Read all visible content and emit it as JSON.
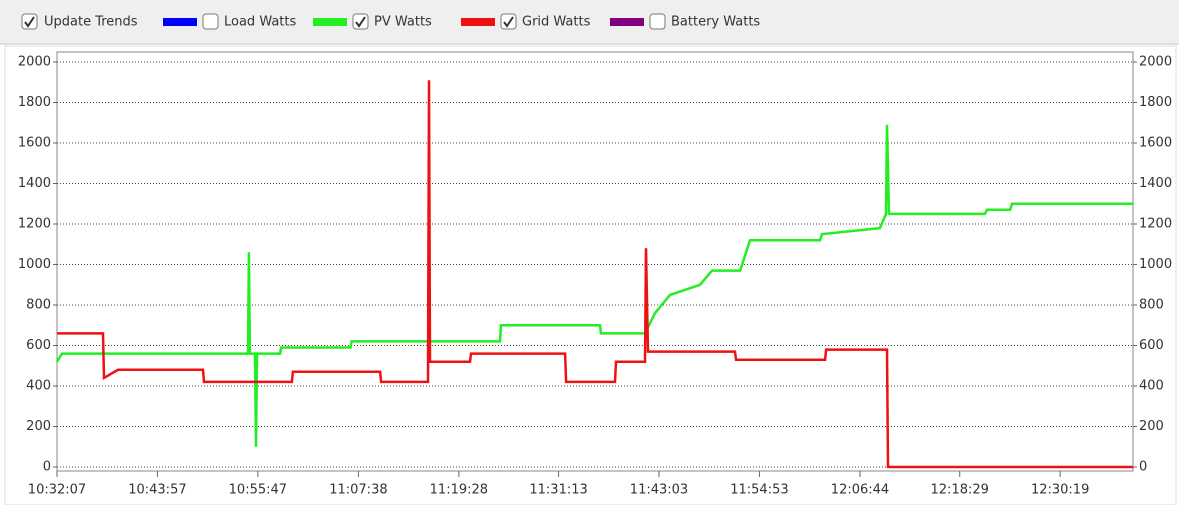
{
  "toolbar": {
    "update_trends": {
      "label": "Update Trends",
      "checked": true
    }
  },
  "chart_data": {
    "type": "line",
    "legend": [
      {
        "name": "Load Watts",
        "color": "#0000ff",
        "checked": false
      },
      {
        "name": "PV Watts",
        "color": "#22ee22",
        "checked": true
      },
      {
        "name": "Grid Watts",
        "color": "#ee1111",
        "checked": true
      },
      {
        "name": "Battery Watts",
        "color": "#800080",
        "checked": false
      }
    ],
    "xlim": [
      37927,
      45534
    ],
    "xticks": [
      {
        "value": 37927,
        "label": "10:32:07"
      },
      {
        "value": 38637,
        "label": "10:43:57"
      },
      {
        "value": 39347,
        "label": "10:55:47"
      },
      {
        "value": 40058,
        "label": "11:07:38"
      },
      {
        "value": 40768,
        "label": "11:19:28"
      },
      {
        "value": 41473,
        "label": "11:31:13"
      },
      {
        "value": 42183,
        "label": "11:43:03"
      },
      {
        "value": 42893,
        "label": "11:54:53"
      },
      {
        "value": 43604,
        "label": "12:06:44"
      },
      {
        "value": 44309,
        "label": "12:18:29"
      },
      {
        "value": 45019,
        "label": "12:30:19"
      }
    ],
    "ylim": [
      0,
      2000
    ],
    "yticks": [
      0,
      200,
      400,
      600,
      800,
      1000,
      1200,
      1400,
      1600,
      1800,
      2000
    ],
    "y2lim": [
      0,
      2000
    ],
    "y2ticks": [
      0,
      200,
      400,
      600,
      800,
      1000,
      1200,
      1400,
      1600,
      1800,
      2000
    ],
    "grid": true,
    "series": [
      {
        "color": "#22ee22",
        "x": [
          37927,
          37962,
          39277,
          39284,
          39291,
          39327,
          39334,
          39341,
          39504,
          39511,
          40003,
          40010,
          41059,
          41066,
          41766,
          41773,
          42084,
          42155,
          42261,
          42473,
          42558,
          42756,
          42826,
          43321,
          43335,
          43745,
          43788,
          43795,
          43809,
          44488,
          44502,
          44665,
          44679,
          45534
        ],
        "values": [
          520,
          560,
          560,
          1060,
          560,
          560,
          100,
          560,
          560,
          590,
          590,
          620,
          620,
          700,
          700,
          660,
          660,
          760,
          850,
          900,
          970,
          970,
          1120,
          1120,
          1150,
          1180,
          1250,
          1690,
          1250,
          1250,
          1270,
          1270,
          1300,
          1300
        ]
      },
      {
        "color": "#ee1111",
        "x": [
          37927,
          38252,
          38259,
          38358,
          38959,
          38966,
          39588,
          39595,
          40211,
          40218,
          40550,
          40557,
          40564,
          40847,
          40854,
          41519,
          41526,
          41872,
          41879,
          42084,
          42091,
          42105,
          42720,
          42727,
          43357,
          43364,
          43795,
          43802,
          45534
        ],
        "values": [
          660,
          660,
          440,
          480,
          480,
          420,
          420,
          470,
          470,
          420,
          420,
          1910,
          520,
          520,
          560,
          560,
          420,
          420,
          520,
          520,
          1080,
          570,
          570,
          530,
          530,
          580,
          580,
          0,
          0
        ]
      }
    ]
  }
}
